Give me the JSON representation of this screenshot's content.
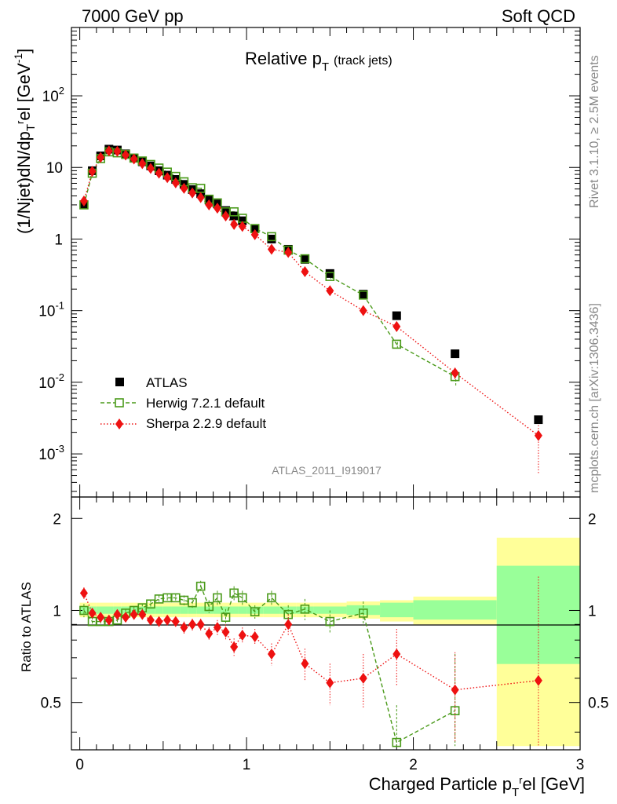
{
  "header": {
    "left": "7000 GeV pp",
    "right": "Soft QCD"
  },
  "title": {
    "main": "Relative p",
    "sub": "T",
    "note": "(track jets)"
  },
  "side_labels": {
    "top": "Rivet 3.1.10, ≥ 2.5M events",
    "bottom": "mcplots.cern.ch [arXiv:1306.3436]"
  },
  "watermark": "ATLAS_2011_I919017",
  "axes": {
    "y_top_label": "(1/Njet)dN/dp",
    "y_top_label_tail": "el [GeV",
    "y_bottom_label": "Ratio to ATLAS",
    "x_label": "Charged Particle p",
    "x_label_tail": "el [GeV]",
    "top_ticks": [
      {
        "label": "10",
        "exp": "-3",
        "v": 0.001
      },
      {
        "label": "10",
        "exp": "-2",
        "v": 0.01
      },
      {
        "label": "10",
        "exp": "-1",
        "v": 0.1
      },
      {
        "label": "1",
        "exp": "",
        "v": 1
      },
      {
        "label": "10",
        "exp": "",
        "v": 10
      },
      {
        "label": "10",
        "exp": "2",
        "v": 100
      }
    ],
    "ratio_ticks_left": [
      "0.5",
      "1",
      "2"
    ],
    "ratio_ticks_right": [
      "0.5",
      "1",
      "2"
    ],
    "x_ticks": [
      "0",
      "1",
      "2",
      "3"
    ]
  },
  "legend": [
    {
      "label": "ATLAS"
    },
    {
      "label": "Herwig 7.2.1 default"
    },
    {
      "label": "Sherpa 2.2.9 default"
    }
  ],
  "colors": {
    "atlas": "#000000",
    "herwig": "#4a9a1a",
    "sherpa": "#ee1111",
    "band_outer": "#ffff99",
    "band_inner": "#99ff99"
  },
  "chart_data": {
    "type": "scatter",
    "x_unit": "GeV",
    "y_scale": "log",
    "xlim": [
      -0.05,
      3.0
    ],
    "ylim": [
      0.00025,
      900
    ],
    "ratio_ylim": [
      0.35,
      2.35
    ],
    "ratio_scale": "log",
    "x": [
      0.025,
      0.075,
      0.125,
      0.175,
      0.225,
      0.275,
      0.325,
      0.375,
      0.425,
      0.475,
      0.525,
      0.575,
      0.625,
      0.675,
      0.725,
      0.775,
      0.825,
      0.875,
      0.925,
      0.975,
      1.05,
      1.15,
      1.25,
      1.35,
      1.5,
      1.7,
      1.9,
      2.25,
      2.75
    ],
    "bin_edges": [
      0.0,
      0.05,
      0.1,
      0.15,
      0.2,
      0.25,
      0.3,
      0.35,
      0.4,
      0.45,
      0.5,
      0.55,
      0.6,
      0.65,
      0.7,
      0.75,
      0.8,
      0.85,
      0.9,
      0.95,
      1.0,
      1.1,
      1.2,
      1.3,
      1.4,
      1.6,
      1.8,
      2.0,
      2.5,
      3.0
    ],
    "atlas": [
      3.0,
      9.0,
      14.5,
      18.0,
      17.5,
      15.5,
      13.5,
      12.0,
      10.5,
      9.0,
      7.8,
      6.8,
      5.8,
      4.9,
      4.3,
      3.5,
      3.1,
      2.5,
      2.1,
      1.8,
      1.4,
      1.0,
      0.72,
      0.52,
      0.33,
      0.17,
      0.085,
      0.025,
      0.003
    ],
    "herwig": [
      3.0,
      8.3,
      13.3,
      16.5,
      16.0,
      15.2,
      13.5,
      12.3,
      11.0,
      9.8,
      8.6,
      7.5,
      6.3,
      5.2,
      5.1,
      3.6,
      3.2,
      2.4,
      2.4,
      1.95,
      1.4,
      1.08,
      0.7,
      0.53,
      0.3,
      0.165,
      0.034,
      0.012,
      null
    ],
    "sherpa": [
      3.4,
      8.8,
      13.8,
      17.0,
      16.8,
      14.9,
      13.1,
      11.3,
      9.7,
      8.3,
      7.2,
      6.1,
      5.1,
      4.4,
      3.8,
      3.0,
      2.7,
      2.1,
      1.6,
      1.5,
      1.15,
      0.72,
      0.65,
      0.35,
      0.19,
      0.1,
      0.06,
      0.0135,
      0.0018
    ],
    "herwig_ratio": [
      1.0,
      0.92,
      0.92,
      0.92,
      0.93,
      0.98,
      1.0,
      1.02,
      1.05,
      1.09,
      1.1,
      1.1,
      1.08,
      1.06,
      1.2,
      1.03,
      1.1,
      0.95,
      1.14,
      1.1,
      0.99,
      1.1,
      0.97,
      1.01,
      0.92,
      0.98,
      0.37,
      0.47,
      null
    ],
    "sherpa_ratio": [
      1.14,
      0.98,
      0.95,
      0.93,
      0.97,
      0.95,
      0.97,
      0.97,
      0.93,
      0.92,
      0.93,
      0.92,
      0.88,
      0.9,
      0.9,
      0.84,
      0.88,
      0.85,
      0.76,
      0.83,
      0.82,
      0.72,
      0.9,
      0.67,
      0.58,
      0.6,
      0.72,
      0.55,
      0.59
    ],
    "band_inner": [
      0.03,
      0.03,
      0.03,
      0.03,
      0.03,
      0.03,
      0.03,
      0.03,
      0.03,
      0.03,
      0.03,
      0.03,
      0.03,
      0.03,
      0.03,
      0.03,
      0.03,
      0.03,
      0.03,
      0.03,
      0.03,
      0.03,
      0.03,
      0.03,
      0.03,
      0.04,
      0.06,
      0.08,
      0.4
    ],
    "band_outer": [
      0.06,
      0.06,
      0.06,
      0.06,
      0.06,
      0.06,
      0.06,
      0.06,
      0.06,
      0.06,
      0.06,
      0.06,
      0.06,
      0.06,
      0.06,
      0.06,
      0.06,
      0.06,
      0.06,
      0.06,
      0.06,
      0.06,
      0.06,
      0.06,
      0.06,
      0.07,
      0.08,
      0.11,
      0.73
    ],
    "band_outer_low": [
      0.05,
      0.05,
      0.05,
      0.05,
      0.05,
      0.05,
      0.05,
      0.05,
      0.05,
      0.05,
      0.05,
      0.05,
      0.05,
      0.05,
      0.05,
      0.05,
      0.05,
      0.05,
      0.05,
      0.05,
      0.05,
      0.05,
      0.05,
      0.05,
      0.05,
      0.06,
      0.08,
      0.1,
      0.65
    ],
    "herwig_err": [
      0.05,
      0.03,
      0.03,
      0.03,
      0.03,
      0.03,
      0.03,
      0.03,
      0.03,
      0.03,
      0.03,
      0.03,
      0.04,
      0.04,
      0.05,
      0.05,
      0.06,
      0.06,
      0.06,
      0.06,
      0.05,
      0.06,
      0.07,
      0.08,
      0.08,
      0.09,
      0.12,
      0.25,
      null
    ],
    "sherpa_err": [
      0.05,
      0.03,
      0.03,
      0.03,
      0.03,
      0.03,
      0.03,
      0.03,
      0.03,
      0.03,
      0.03,
      0.03,
      0.04,
      0.04,
      0.04,
      0.04,
      0.05,
      0.05,
      0.05,
      0.05,
      0.05,
      0.06,
      0.07,
      0.08,
      0.09,
      0.12,
      0.15,
      0.18,
      0.7
    ]
  }
}
